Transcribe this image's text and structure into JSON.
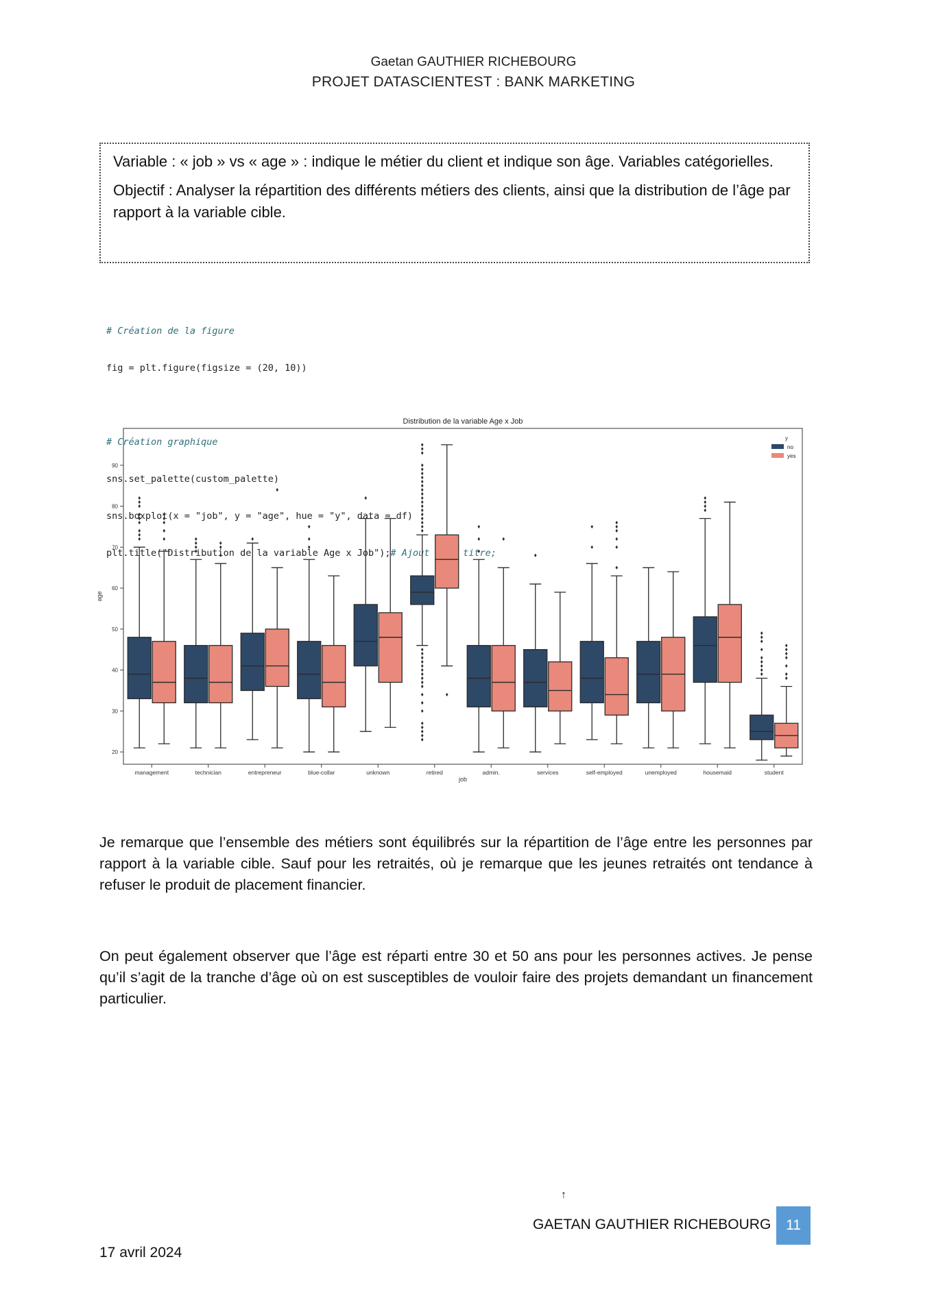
{
  "header": {
    "author": "Gaetan GAUTHIER RICHEBOURG",
    "project": "PROJET DATASCIENTEST : BANK MARKETING"
  },
  "variable_box": {
    "variable_line": "Variable : « job » vs « age » : indique le métier du client et indique son âge. Variables catégorielles.",
    "objective_line": "Objectif : Analyser la répartition des différents métiers des clients, ainsi que la distribution de l’âge par rapport à la variable cible."
  },
  "code": {
    "comment1": "# Création de la figure",
    "line1": "fig = plt.figure(figsize = (20, 10))",
    "comment2": "# Création graphique",
    "line2": "sns.set_palette(custom_palette)",
    "line3": "sns.boxplot(x = \"job\", y = \"age\", hue = \"y\", data = df)",
    "line4": "plt.title(\"Distribution de la variable Age x Job\");",
    "line4_comment": "# Ajout d'un titre;"
  },
  "chart_data": {
    "type": "boxplot",
    "title": "Distribution de la variable Age x Job",
    "xlabel": "job",
    "ylabel": "age",
    "ylim": [
      17,
      99
    ],
    "yticks": [
      20,
      30,
      40,
      50,
      60,
      70,
      80,
      90
    ],
    "legend": {
      "title": "y",
      "placement": "top-right"
    },
    "categories": [
      "management",
      "technician",
      "entrepreneur",
      "blue-collar",
      "unknown",
      "retired",
      "admin.",
      "services",
      "self-employed",
      "unemployed",
      "housemaid",
      "student"
    ],
    "series": [
      {
        "name": "no",
        "color": "#2e4868",
        "boxes": [
          {
            "min": 21,
            "q1": 33,
            "median": 39,
            "q3": 48,
            "max": 70,
            "outliers": [
              72,
              73,
              74,
              76,
              77,
              78,
              80,
              81,
              82
            ]
          },
          {
            "min": 21,
            "q1": 32,
            "median": 38,
            "q3": 46,
            "max": 67,
            "outliers": [
              69,
              70,
              71,
              72
            ]
          },
          {
            "min": 23,
            "q1": 35,
            "median": 41,
            "q3": 49,
            "max": 71,
            "outliers": [
              72
            ]
          },
          {
            "min": 20,
            "q1": 33,
            "median": 39,
            "q3": 47,
            "max": 67,
            "outliers": [
              70,
              72,
              75
            ]
          },
          {
            "min": 25,
            "q1": 41,
            "median": 47,
            "q3": 56,
            "max": 77,
            "outliers": [
              82
            ]
          },
          {
            "min": 46,
            "q1": 56,
            "median": 59,
            "q3": 63,
            "max": 73,
            "outliers": [
              23,
              24,
              25,
              26,
              27,
              30,
              32,
              34,
              36,
              37,
              38,
              39,
              40,
              41,
              42,
              43,
              44,
              45,
              74,
              75,
              76,
              77,
              78,
              79,
              80,
              81,
              82,
              83,
              84,
              85,
              86,
              87,
              88,
              89,
              90,
              93,
              94,
              95
            ]
          },
          {
            "min": 20,
            "q1": 31,
            "median": 38,
            "q3": 46,
            "max": 67,
            "outliers": [
              69,
              72,
              75
            ]
          },
          {
            "min": 20,
            "q1": 31,
            "median": 37,
            "q3": 45,
            "max": 61,
            "outliers": [
              68
            ]
          },
          {
            "min": 23,
            "q1": 32,
            "median": 38,
            "q3": 47,
            "max": 66,
            "outliers": [
              70,
              75
            ]
          },
          {
            "min": 21,
            "q1": 32,
            "median": 39,
            "q3": 47,
            "max": 65,
            "outliers": []
          },
          {
            "min": 22,
            "q1": 37,
            "median": 46,
            "q3": 53,
            "max": 77,
            "outliers": [
              79,
              80,
              81,
              82
            ]
          },
          {
            "min": 18,
            "q1": 23,
            "median": 25,
            "q3": 29,
            "max": 38,
            "outliers": [
              39,
              40,
              41,
              42,
              43,
              45,
              47,
              48,
              49
            ]
          }
        ]
      },
      {
        "name": "yes",
        "color": "#e9897b",
        "boxes": [
          {
            "min": 22,
            "q1": 32,
            "median": 37,
            "q3": 47,
            "max": 69,
            "outliers": [
              72,
              74,
              76,
              77,
              78
            ]
          },
          {
            "min": 21,
            "q1": 32,
            "median": 37,
            "q3": 46,
            "max": 66,
            "outliers": [
              68,
              70,
              71
            ]
          },
          {
            "min": 21,
            "q1": 36,
            "median": 41,
            "q3": 50,
            "max": 65,
            "outliers": [
              84
            ]
          },
          {
            "min": 20,
            "q1": 31,
            "median": 37,
            "q3": 46,
            "max": 63,
            "outliers": []
          },
          {
            "min": 26,
            "q1": 37,
            "median": 48,
            "q3": 54,
            "max": 77,
            "outliers": []
          },
          {
            "min": 41,
            "q1": 60,
            "median": 67,
            "q3": 73,
            "max": 95,
            "outliers": [
              34
            ]
          },
          {
            "min": 21,
            "q1": 30,
            "median": 37,
            "q3": 46,
            "max": 65,
            "outliers": [
              72
            ]
          },
          {
            "min": 22,
            "q1": 30,
            "median": 35,
            "q3": 42,
            "max": 59,
            "outliers": []
          },
          {
            "min": 22,
            "q1": 29,
            "median": 34,
            "q3": 43,
            "max": 63,
            "outliers": [
              65,
              70,
              72,
              74,
              75,
              76
            ]
          },
          {
            "min": 21,
            "q1": 30,
            "median": 39,
            "q3": 48,
            "max": 64,
            "outliers": []
          },
          {
            "min": 21,
            "q1": 37,
            "median": 48,
            "q3": 56,
            "max": 81,
            "outliers": []
          },
          {
            "min": 19,
            "q1": 21,
            "median": 24,
            "q3": 27,
            "max": 36,
            "outliers": [
              38,
              39,
              41,
              43,
              44,
              45,
              46
            ]
          }
        ]
      }
    ]
  },
  "paragraphs": {
    "p1": "Je remarque que l’ensemble des métiers sont équilibrés sur la répartition de l’âge entre les personnes par rapport à la variable cible. Sauf pour les retraités, où je remarque que les jeunes retraités ont tendance à refuser le produit de placement financier.",
    "p2": "On peut également observer que l’âge est réparti entre 30 et 50 ans pour les personnes actives. Je pense qu’il s’agit de la tranche d’âge où on est susceptibles de vouloir faire des projets demandant un financement particulier."
  },
  "footer": {
    "mark": "↑",
    "author": "GAETAN GAUTHIER RICHEBOURG",
    "page_number": "11",
    "date": "17 avril 2024"
  }
}
